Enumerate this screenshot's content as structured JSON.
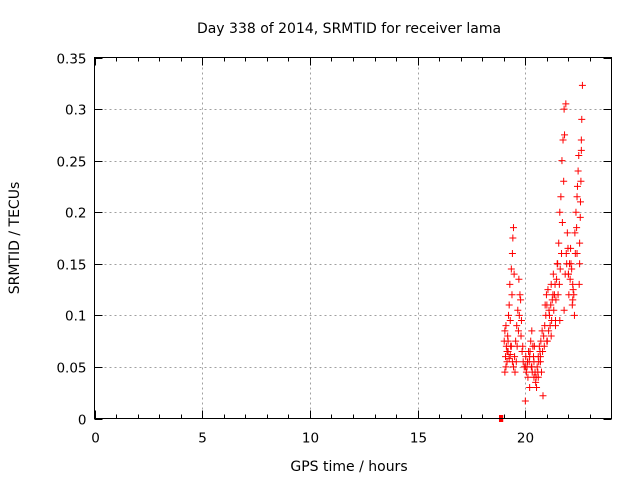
{
  "chart_data": {
    "type": "scatter",
    "title": "Day 338 of 2014, SRMTID for receiver lama",
    "xlabel": "GPS time / hours",
    "ylabel": "SRMTID / TECUs",
    "xlim": [
      0,
      24
    ],
    "ylim": [
      0,
      0.35
    ],
    "xticks": [
      0,
      5,
      10,
      15,
      20
    ],
    "xtick_labels": [
      "0",
      "5",
      "10",
      "15",
      "20"
    ],
    "yticks": [
      0,
      0.05,
      0.1,
      0.15,
      0.2,
      0.25,
      0.3,
      0.35
    ],
    "ytick_labels": [
      "0",
      "0.05",
      "0.1",
      "0.15",
      "0.2",
      "0.25",
      "0.3",
      "0.35"
    ],
    "grid": true,
    "legend": "none",
    "marker": "+",
    "color": "#ff0000",
    "series": [
      {
        "x": [
          18.8,
          18.83,
          18.86,
          18.89,
          18.92,
          18.95,
          19.02,
          19.05,
          19.08,
          19.1,
          19.12,
          19.15,
          19.18,
          19.2,
          19.22,
          19.25,
          19.28,
          19.3,
          19.32,
          19.35,
          19.38,
          19.4,
          19.42,
          19.45,
          19.48,
          19.05,
          19.1,
          19.15,
          19.2,
          19.25,
          19.3,
          19.35,
          19.4,
          19.45,
          19.5,
          19.55,
          19.6,
          19.65,
          19.7,
          19.75,
          19.8,
          19.85,
          19.9,
          19.95,
          19.52,
          19.58,
          19.62,
          19.68,
          19.72,
          19.78,
          19.82,
          19.88,
          20.0,
          20.05,
          20.1,
          20.15,
          20.2,
          20.25,
          20.3,
          20.35,
          20.4,
          20.45,
          20.02,
          20.08,
          20.12,
          20.18,
          20.22,
          20.28,
          20.32,
          20.38,
          20.42,
          20.48,
          20.5,
          20.55,
          20.6,
          20.65,
          20.7,
          20.75,
          20.8,
          20.85,
          20.9,
          20.95,
          20.52,
          20.58,
          20.62,
          20.68,
          20.72,
          20.78,
          20.82,
          20.88,
          20.92,
          20.98,
          21.0,
          21.05,
          21.1,
          21.15,
          21.2,
          21.25,
          21.3,
          21.35,
          21.4,
          21.45,
          21.02,
          21.08,
          21.12,
          21.18,
          21.22,
          21.28,
          21.32,
          21.38,
          21.42,
          21.48,
          21.5,
          21.55,
          21.6,
          21.65,
          21.7,
          21.75,
          21.8,
          21.85,
          21.9,
          21.95,
          21.52,
          21.58,
          21.62,
          21.68,
          21.72,
          21.78,
          21.82,
          21.88,
          21.92,
          21.98,
          22.0,
          22.05,
          22.1,
          22.15,
          22.2,
          22.25,
          22.3,
          22.35,
          22.4,
          22.45,
          22.02,
          22.08,
          22.12,
          22.18,
          22.22,
          22.28,
          22.32,
          22.38,
          22.42,
          22.48,
          22.5,
          22.52,
          22.55,
          22.58,
          22.6,
          22.62,
          22.65,
          22.52,
          22.56,
          22.6,
          20.3,
          20.7,
          21.0,
          21.4,
          21.8,
          22.2,
          20.0,
          20.2,
          20.4,
          20.6,
          21.2,
          21.6,
          22.0,
          22.4
        ],
        "y": [
          0.0,
          0.0,
          0.0,
          0.0,
          0.0,
          0.0,
          0.075,
          0.085,
          0.06,
          0.09,
          0.07,
          0.055,
          0.08,
          0.065,
          0.1,
          0.11,
          0.13,
          0.095,
          0.07,
          0.145,
          0.12,
          0.16,
          0.175,
          0.185,
          0.14,
          0.045,
          0.05,
          0.065,
          0.075,
          0.058,
          0.062,
          0.07,
          0.055,
          0.05,
          0.06,
          0.075,
          0.09,
          0.105,
          0.135,
          0.12,
          0.08,
          0.065,
          0.055,
          0.05,
          0.045,
          0.055,
          0.07,
          0.085,
          0.1,
          0.115,
          0.095,
          0.07,
          0.05,
          0.045,
          0.055,
          0.065,
          0.06,
          0.075,
          0.085,
          0.07,
          0.055,
          0.045,
          0.06,
          0.05,
          0.04,
          0.055,
          0.065,
          0.05,
          0.045,
          0.06,
          0.07,
          0.035,
          0.04,
          0.05,
          0.06,
          0.07,
          0.055,
          0.045,
          0.065,
          0.08,
          0.09,
          0.1,
          0.03,
          0.045,
          0.055,
          0.065,
          0.075,
          0.085,
          0.022,
          0.07,
          0.11,
          0.12,
          0.11,
          0.125,
          0.105,
          0.09,
          0.13,
          0.115,
          0.14,
          0.12,
          0.095,
          0.135,
          0.075,
          0.085,
          0.1,
          0.11,
          0.095,
          0.12,
          0.105,
          0.13,
          0.115,
          0.15,
          0.15,
          0.17,
          0.2,
          0.215,
          0.25,
          0.27,
          0.3,
          0.14,
          0.16,
          0.18,
          0.12,
          0.13,
          0.145,
          0.16,
          0.19,
          0.23,
          0.275,
          0.305,
          0.15,
          0.165,
          0.14,
          0.15,
          0.165,
          0.145,
          0.13,
          0.12,
          0.18,
          0.2,
          0.215,
          0.24,
          0.12,
          0.135,
          0.15,
          0.11,
          0.125,
          0.1,
          0.16,
          0.185,
          0.225,
          0.255,
          0.13,
          0.17,
          0.195,
          0.23,
          0.27,
          0.29,
          0.323,
          0.15,
          0.21,
          0.26,
          0.05,
          0.06,
          0.075,
          0.09,
          0.105,
          0.115,
          0.017,
          0.03,
          0.04,
          0.04,
          0.08,
          0.095,
          0.14,
          0.16
        ]
      }
    ]
  }
}
